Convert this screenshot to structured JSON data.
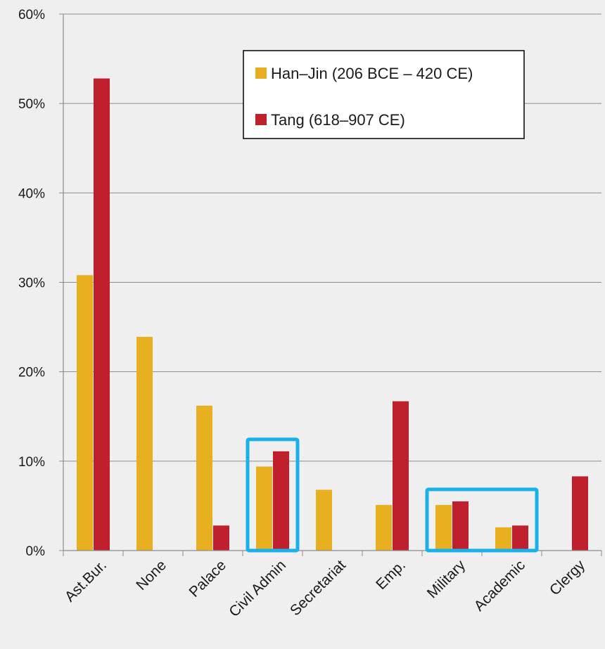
{
  "chart_data": {
    "type": "bar",
    "categories": [
      "Ast.Bur.",
      "None",
      "Palace",
      "Civil Admin",
      "Secretariat",
      "Emp.",
      "Military",
      "Academic",
      "Clergy"
    ],
    "series": [
      {
        "name": "Han–Jin (206 BCE – 420 CE)",
        "color": "#e8b020",
        "values": [
          30.8,
          23.9,
          16.2,
          9.4,
          6.8,
          5.1,
          5.1,
          2.6,
          0
        ]
      },
      {
        "name": "Tang (618–907 CE)",
        "color": "#c0202e",
        "values": [
          52.8,
          0,
          2.8,
          11.1,
          0,
          16.7,
          5.5,
          2.8,
          8.3
        ]
      }
    ],
    "y_ticks": [
      "0%",
      "10%",
      "20%",
      "30%",
      "40%",
      "50%",
      "60%"
    ],
    "ylim": [
      0,
      60
    ],
    "grid": true,
    "legend": {
      "placement": "top-right",
      "items": [
        "Han–Jin (206 BCE – 420 CE)",
        "Tang (618–907 CE)"
      ]
    },
    "highlight_boxes": [
      {
        "categories": [
          "Civil Admin"
        ],
        "color": "#1ab0e8"
      },
      {
        "categories": [
          "Military",
          "Academic"
        ],
        "color": "#1ab0e8"
      }
    ],
    "title": "",
    "xlabel": "",
    "ylabel": ""
  }
}
